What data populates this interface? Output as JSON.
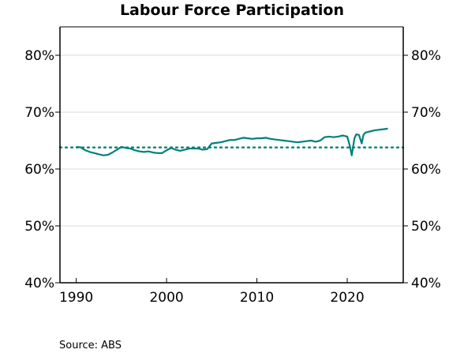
{
  "chart_data": {
    "type": "line",
    "title": "Labour Force Participation",
    "source": "Source: ABS",
    "xlabel": "",
    "ylabel": "",
    "xlim": [
      1988.2,
      2026.2
    ],
    "ylim": [
      40,
      85
    ],
    "x_ticks": [
      1990,
      2000,
      2010,
      2020
    ],
    "x_tick_labels": [
      "1990",
      "2000",
      "2010",
      "2020"
    ],
    "y_ticks": [
      40,
      50,
      60,
      70,
      80
    ],
    "y_tick_labels": [
      "40%",
      "50%",
      "60%",
      "70%",
      "80%"
    ],
    "grid": "horizontal",
    "legend": "none",
    "colors": {
      "line": "#00807a",
      "grid": "#d9d9d9",
      "axis": "#000000"
    },
    "series": [
      {
        "style": "solid",
        "x": [
          1990.0,
          1990.5,
          1991.0,
          1991.5,
          1992.0,
          1992.5,
          1993.0,
          1993.5,
          1994.0,
          1994.5,
          1995.0,
          1995.5,
          1996.0,
          1996.5,
          1997.0,
          1997.5,
          1998.0,
          1998.5,
          1999.0,
          1999.5,
          2000.0,
          2000.5,
          2001.0,
          2001.5,
          2002.0,
          2002.5,
          2003.0,
          2003.5,
          2004.0,
          2004.5,
          2005.0,
          2005.5,
          2006.0,
          2006.5,
          2007.0,
          2007.5,
          2008.0,
          2008.5,
          2009.0,
          2009.5,
          2010.0,
          2010.5,
          2011.0,
          2011.5,
          2012.0,
          2012.5,
          2013.0,
          2013.5,
          2014.0,
          2014.5,
          2015.0,
          2015.5,
          2016.0,
          2016.5,
          2017.0,
          2017.5,
          2018.0,
          2018.5,
          2019.0,
          2019.5,
          2020.0,
          2020.3,
          2020.5,
          2020.8,
          2021.0,
          2021.3,
          2021.6,
          2021.8,
          2022.0,
          2022.5,
          2023.0,
          2023.5,
          2024.0,
          2024.5
        ],
        "y": [
          63.9,
          63.8,
          63.3,
          63.0,
          62.8,
          62.6,
          62.4,
          62.5,
          62.9,
          63.4,
          63.9,
          63.7,
          63.6,
          63.3,
          63.1,
          63.0,
          63.1,
          62.9,
          62.8,
          62.8,
          63.3,
          63.7,
          63.4,
          63.2,
          63.4,
          63.6,
          63.6,
          63.6,
          63.4,
          63.5,
          64.5,
          64.6,
          64.7,
          64.9,
          65.1,
          65.1,
          65.3,
          65.5,
          65.4,
          65.3,
          65.4,
          65.4,
          65.5,
          65.3,
          65.2,
          65.1,
          65.0,
          64.9,
          64.8,
          64.7,
          64.8,
          64.9,
          65.0,
          64.8,
          65.0,
          65.6,
          65.7,
          65.6,
          65.7,
          65.9,
          65.7,
          64.0,
          62.4,
          65.4,
          66.1,
          66.0,
          64.5,
          66.0,
          66.4,
          66.6,
          66.8,
          66.9,
          67.0,
          67.1
        ]
      },
      {
        "style": "dotted",
        "x": [
          1988.2,
          2026.2
        ],
        "y": [
          63.8,
          63.8
        ]
      }
    ]
  }
}
